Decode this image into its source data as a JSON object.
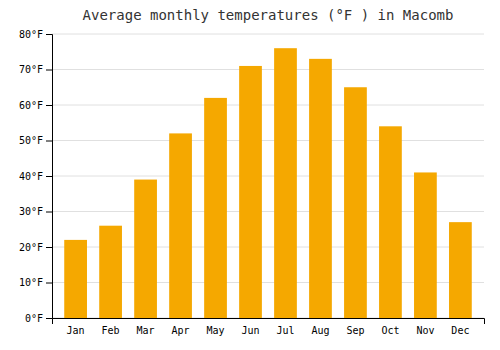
{
  "chart_data": {
    "type": "bar",
    "title": "Average monthly temperatures (°F ) in Macomb",
    "categories": [
      "Jan",
      "Feb",
      "Mar",
      "Apr",
      "May",
      "Jun",
      "Jul",
      "Aug",
      "Sep",
      "Oct",
      "Nov",
      "Dec"
    ],
    "values": [
      22,
      26,
      39,
      52,
      62,
      71,
      76,
      73,
      65,
      54,
      41,
      27
    ],
    "color": "#F5A800",
    "ylim": [
      0,
      80
    ],
    "yticks": [
      {
        "value": 0,
        "label": "0°F"
      },
      {
        "value": 10,
        "label": "10°F"
      },
      {
        "value": 20,
        "label": "20°F"
      },
      {
        "value": 30,
        "label": "30°F"
      },
      {
        "value": 40,
        "label": "40°F"
      },
      {
        "value": 50,
        "label": "50°F"
      },
      {
        "value": 60,
        "label": "60°F"
      },
      {
        "value": 70,
        "label": "70°F"
      },
      {
        "value": 80,
        "label": "80°F"
      }
    ],
    "grid": true
  }
}
